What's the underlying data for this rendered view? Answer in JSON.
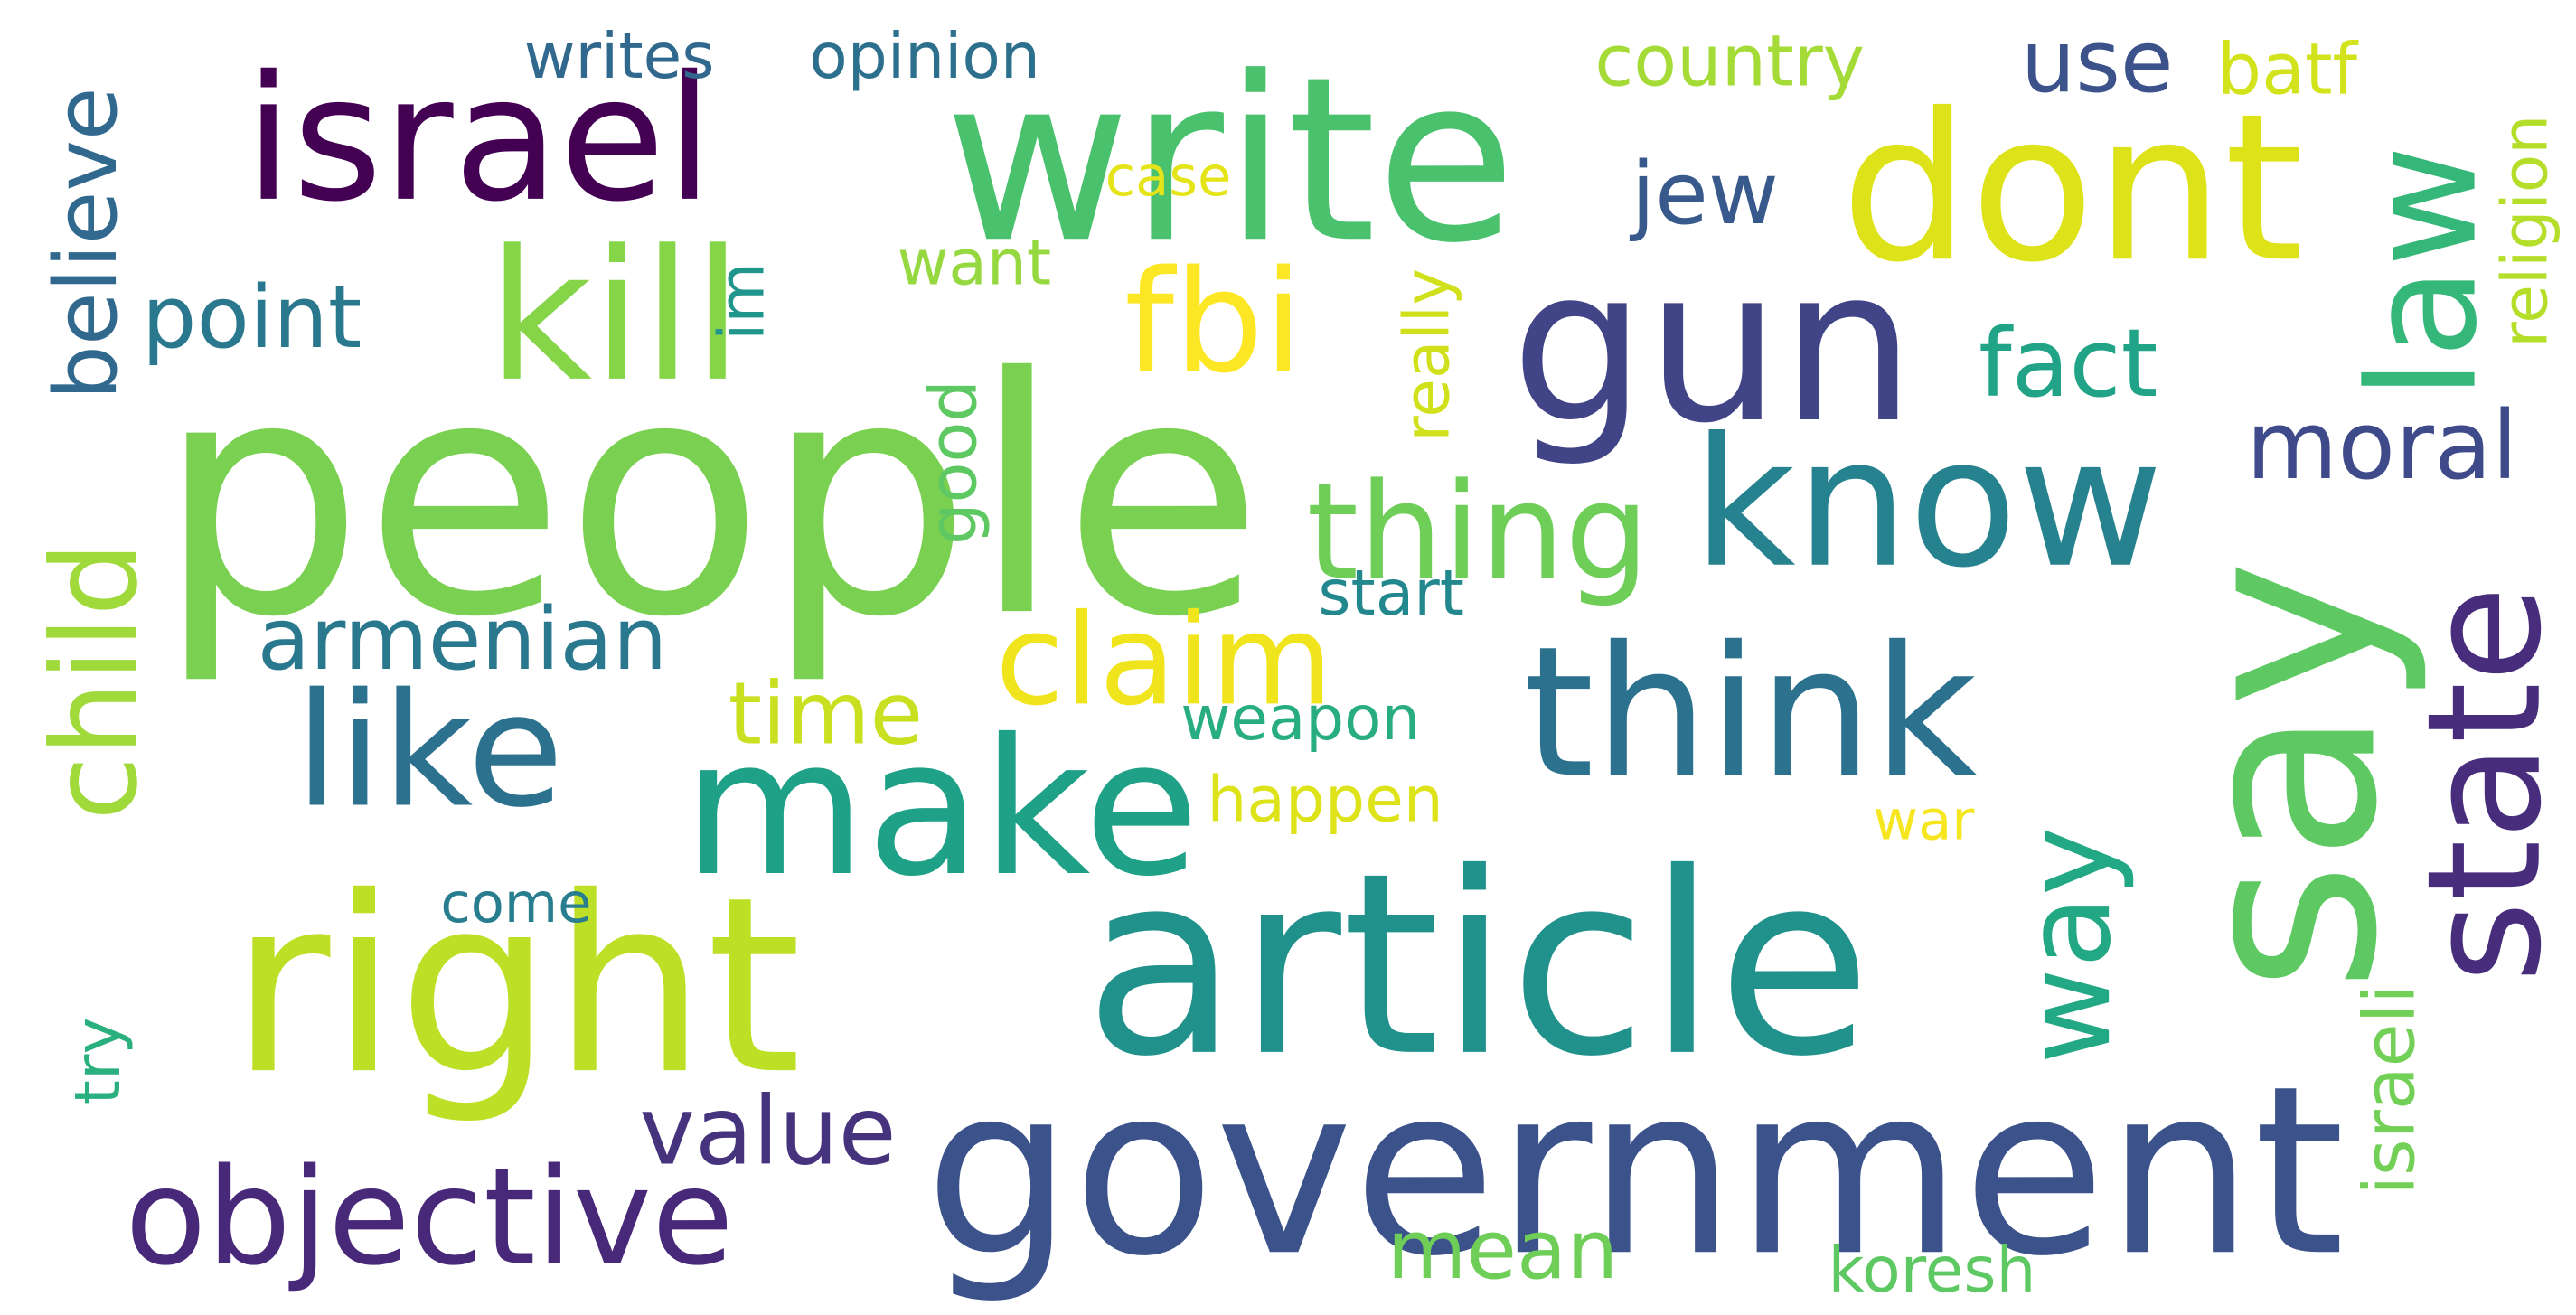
{
  "words": [
    {
      "text": "people",
      "color": "#7ad151"
    },
    {
      "text": "write",
      "color": "#4ac16d"
    },
    {
      "text": "israel",
      "color": "#440154"
    },
    {
      "text": "article",
      "color": "#21918c"
    },
    {
      "text": "say",
      "color": "#5ec962"
    },
    {
      "text": "government",
      "color": "#3b528b"
    },
    {
      "text": "right",
      "color": "#bddf26"
    },
    {
      "text": "dont",
      "color": "#dde318"
    },
    {
      "text": "kill",
      "color": "#86d549"
    },
    {
      "text": "gun",
      "color": "#414487"
    },
    {
      "text": "think",
      "color": "#2c728e"
    },
    {
      "text": "make",
      "color": "#1fa187"
    },
    {
      "text": "like",
      "color": "#2c728e"
    },
    {
      "text": "law",
      "color": "#35b779"
    },
    {
      "text": "state",
      "color": "#472d7b"
    },
    {
      "text": "know",
      "color": "#26828e"
    },
    {
      "text": "fbi",
      "color": "#fde725"
    },
    {
      "text": "thing",
      "color": "#6ece58"
    },
    {
      "text": "claim",
      "color": "#f0e51d"
    },
    {
      "text": "objective",
      "color": "#482878"
    },
    {
      "text": "child",
      "color": "#9fda3a"
    },
    {
      "text": "armenian",
      "color": "#2a788e"
    },
    {
      "text": "believe",
      "color": "#31688e"
    },
    {
      "text": "way",
      "color": "#22a884"
    },
    {
      "text": "point",
      "color": "#2a788e"
    },
    {
      "text": "value",
      "color": "#46337e"
    },
    {
      "text": "fact",
      "color": "#20a386"
    },
    {
      "text": "moral",
      "color": "#3e4a89"
    },
    {
      "text": "use",
      "color": "#3b528b"
    },
    {
      "text": "jew",
      "color": "#38598c"
    },
    {
      "text": "time",
      "color": "#c8e020"
    },
    {
      "text": "mean",
      "color": "#6ece58"
    },
    {
      "text": "country",
      "color": "#a5db36"
    },
    {
      "text": "religion",
      "color": "#b5de2b"
    },
    {
      "text": "israeli",
      "color": "#73d056"
    },
    {
      "text": "opinion",
      "color": "#2d708e"
    },
    {
      "text": "writes",
      "color": "#31688e"
    },
    {
      "text": "batf",
      "color": "#d2e21b"
    },
    {
      "text": "case",
      "color": "#e5e419"
    },
    {
      "text": "want",
      "color": "#95d840"
    },
    {
      "text": "really",
      "color": "#d0e11c"
    },
    {
      "text": "im",
      "color": "#1f958b"
    },
    {
      "text": "good",
      "color": "#5ec962"
    },
    {
      "text": "start",
      "color": "#23888e"
    },
    {
      "text": "weapon",
      "color": "#27ad81"
    },
    {
      "text": "happen",
      "color": "#dde318"
    },
    {
      "text": "war",
      "color": "#f6e620"
    },
    {
      "text": "come",
      "color": "#287d8e"
    },
    {
      "text": "koresh",
      "color": "#5ec962"
    },
    {
      "text": "try",
      "color": "#2ab07f"
    }
  ]
}
